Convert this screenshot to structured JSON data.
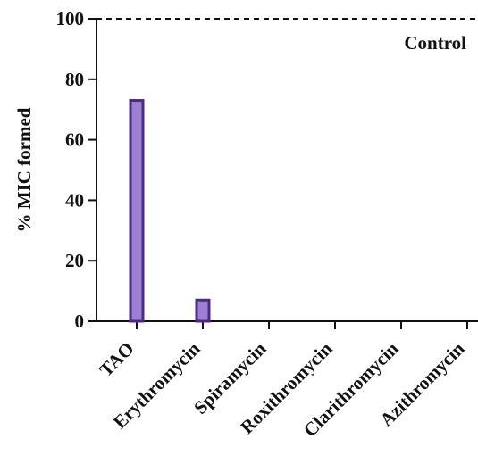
{
  "chart_data": {
    "type": "bar",
    "categories": [
      "TAO",
      "Erythromycin",
      "Spiramycin",
      "Roxithromycin",
      "Clarithromycin",
      "Azithromycin"
    ],
    "values": [
      73,
      7,
      0,
      0,
      0,
      0
    ],
    "title": "",
    "xlabel": "",
    "ylabel": "% MIC formed",
    "ylim": [
      0,
      100
    ],
    "yticks": [
      0,
      20,
      40,
      60,
      80,
      100
    ],
    "grid": false,
    "reference_line": {
      "value": 100,
      "style": "dashed",
      "label": "Control"
    },
    "colors": {
      "bar_fill": "#9b7fd0",
      "bar_stroke": "#4b2a8c",
      "axis": "#111111"
    }
  }
}
